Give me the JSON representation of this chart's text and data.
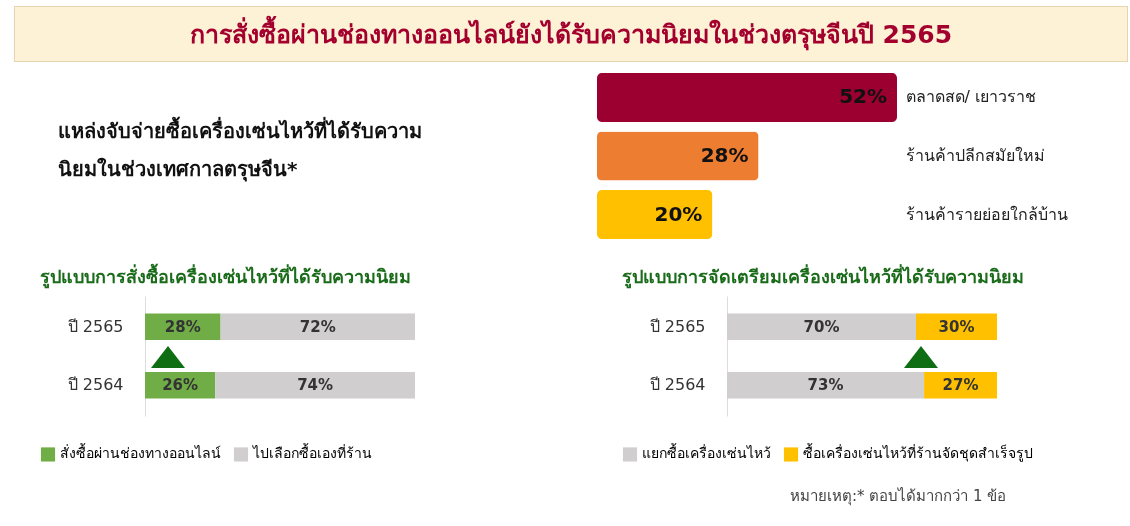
{
  "chart_data": [
    {
      "type": "other",
      "title": "แหล่งจับจ่ายซื้อเครื่องเซ่นไหว้ที่ได้รับความนิยมในช่วงเทศกาลตรุษจีน*"
    },
    {
      "type": "bar",
      "orientation": "horizontal",
      "title": "การสั่งซื้อผ่านช่องทางออนไลน์ยังได้รับความนิยมในช่วงตรุษจีนปี 2565",
      "categories": [
        "ตลาดสด/ เยาวราช",
        "ร้านค้าปลีกสมัยใหม่",
        "ร้านค้ารายย่อยใกล้บ้าน"
      ],
      "values": [
        52,
        28,
        20
      ],
      "colors": [
        "#9b0030",
        "#ed7d31",
        "#ffc000"
      ],
      "value_labels": [
        "52%",
        "28%",
        "20%"
      ]
    },
    {
      "type": "bar",
      "orientation": "horizontal",
      "stacked": true,
      "title": "รูปแบบการสั่งซื้อเครื่องเซ่นไหว้ที่ได้รับความนิยม",
      "categories": [
        "ปี 2565",
        "ปี 2564"
      ],
      "legend": "bottom",
      "series": [
        {
          "name": "สั่งซื้อผ่านช่องทางออนไลน์",
          "color": "#70ad47",
          "values": [
            28,
            26
          ],
          "value_labels": [
            "28%",
            "26%"
          ]
        },
        {
          "name": "ไปเลือกซื้อเองที่ร้าน",
          "color": "#d0cece",
          "values": [
            72,
            74
          ],
          "value_labels": [
            "72%",
            "74%"
          ]
        }
      ]
    },
    {
      "type": "bar",
      "orientation": "horizontal",
      "stacked": true,
      "title": "รูปแบบการจัดเตรียมเครื่องเซ่นไหว้ที่ได้รับความนิยม",
      "categories": [
        "ปี 2565",
        "ปี 2564"
      ],
      "legend": "bottom",
      "annotations": [
        "หมายเหตุ:* ตอบได้มากกว่า 1 ข้อ"
      ],
      "series": [
        {
          "name": "แยกซื้อเครื่องเซ่นไหว้",
          "color": "#d0cece",
          "values": [
            70,
            73
          ],
          "value_labels": [
            "70%",
            "73%"
          ]
        },
        {
          "name": "ซื้อเครื่องเซ่นไหว้ที่ร้านจัดชุดสำเร็จรูป",
          "color": "#ffc000",
          "values": [
            30,
            27
          ],
          "value_labels": [
            "30%",
            "27%"
          ]
        }
      ]
    }
  ]
}
